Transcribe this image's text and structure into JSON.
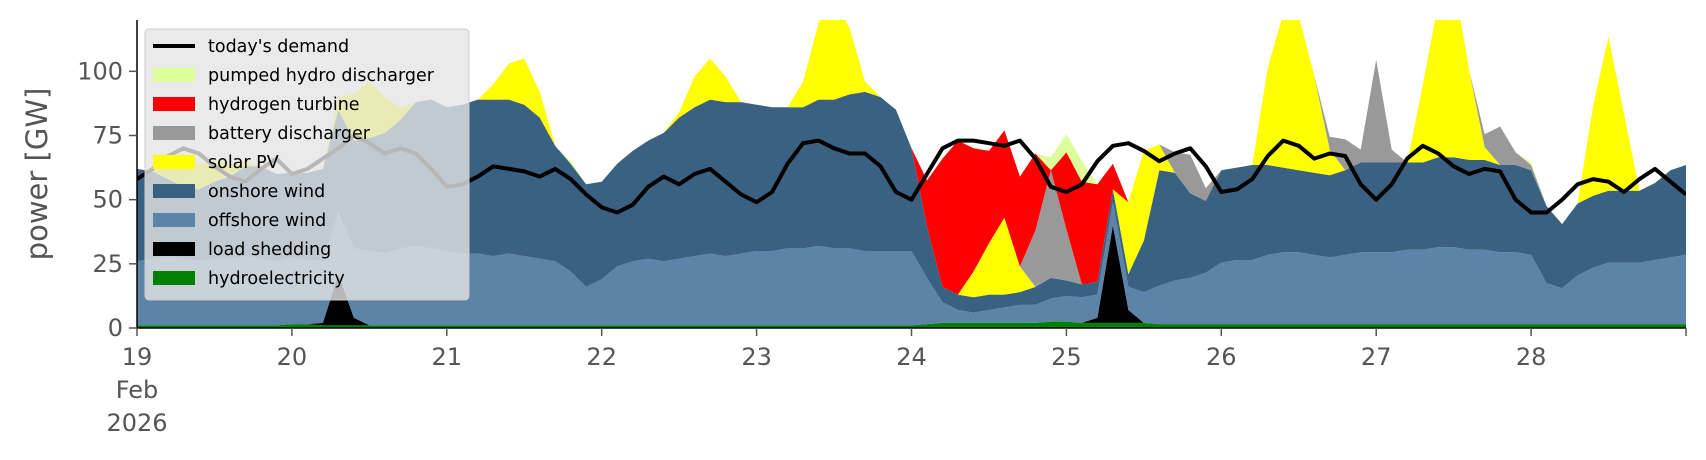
{
  "chart_data": {
    "type": "area",
    "ylabel": "power [GW]",
    "xlabel": "",
    "ylim": [
      0,
      120
    ],
    "xlim": [
      19,
      29
    ],
    "grid": false,
    "legend_position": "top-left",
    "x_ticks": [
      {
        "value": 19,
        "label": "19",
        "sub1": "Feb",
        "sub2": "2026"
      },
      {
        "value": 20,
        "label": "20"
      },
      {
        "value": 21,
        "label": "21"
      },
      {
        "value": 22,
        "label": "22"
      },
      {
        "value": 23,
        "label": "23"
      },
      {
        "value": 24,
        "label": "24"
      },
      {
        "value": 25,
        "label": "25"
      },
      {
        "value": 26,
        "label": "26"
      },
      {
        "value": 27,
        "label": "27"
      },
      {
        "value": 28,
        "label": "28"
      }
    ],
    "y_ticks": [
      0,
      25,
      50,
      75,
      100
    ],
    "x": [
      19.0,
      19.1,
      19.2,
      19.3,
      19.4,
      19.5,
      19.6,
      19.7,
      19.8,
      19.9,
      20.0,
      20.1,
      20.2,
      20.3,
      20.4,
      20.5,
      20.6,
      20.7,
      20.8,
      20.9,
      21.0,
      21.1,
      21.2,
      21.3,
      21.4,
      21.5,
      21.6,
      21.7,
      21.8,
      21.9,
      22.0,
      22.1,
      22.2,
      22.3,
      22.4,
      22.5,
      22.6,
      22.7,
      22.8,
      22.9,
      23.0,
      23.1,
      23.2,
      23.3,
      23.4,
      23.5,
      23.6,
      23.7,
      23.8,
      23.9,
      24.0,
      24.1,
      24.2,
      24.3,
      24.4,
      24.5,
      24.6,
      24.7,
      24.8,
      24.9,
      25.0,
      25.1,
      25.2,
      25.3,
      25.4,
      25.5,
      25.6,
      25.7,
      25.8,
      25.9,
      26.0,
      26.1,
      26.2,
      26.3,
      26.4,
      26.5,
      26.6,
      26.7,
      26.8,
      26.9,
      27.0,
      27.1,
      27.2,
      27.3,
      27.4,
      27.5,
      27.6,
      27.7,
      27.8,
      27.9,
      28.0,
      28.1,
      28.2,
      28.3,
      28.4,
      28.5,
      28.6,
      28.7,
      28.8,
      28.9,
      29.0
    ],
    "series": [
      {
        "name": "hydroelectricity",
        "color": "#008000",
        "values": [
          1,
          1,
          1,
          1,
          1,
          1,
          1,
          1,
          1,
          1,
          1.5,
          1.5,
          1,
          1,
          1,
          1,
          1,
          1,
          1,
          1,
          1,
          1,
          1,
          1,
          1,
          1,
          1,
          1,
          1,
          1,
          1,
          1,
          1,
          1,
          1,
          1,
          1,
          1,
          1,
          1,
          1,
          1,
          1,
          1,
          1,
          1,
          1,
          1,
          1,
          1,
          1,
          1.5,
          2,
          2,
          2,
          2,
          2,
          2,
          2,
          2.5,
          2.5,
          2,
          2,
          2,
          2,
          2,
          1.5,
          1.5,
          1.5,
          1.5,
          1.5,
          1.5,
          1.5,
          1.5,
          1.5,
          1.5,
          1.5,
          1.5,
          1.5,
          1.5,
          1.5,
          1.5,
          1.5,
          1.5,
          1.5,
          1.5,
          1.5,
          1.5,
          1.5,
          1.5,
          1.5,
          1.5,
          1.5,
          1.5,
          1.5,
          1.5,
          1.5,
          1.5,
          1.5,
          1.5,
          1.5
        ]
      },
      {
        "name": "load shedding",
        "color": "#000000",
        "values": [
          0,
          0,
          0,
          0,
          0,
          0,
          0,
          0,
          0,
          0,
          0,
          0,
          1,
          20,
          3,
          0,
          0,
          0,
          0,
          0,
          0,
          0,
          0,
          0,
          0,
          0,
          0,
          0,
          0,
          0,
          0,
          0,
          0,
          0,
          0,
          0,
          0,
          0,
          0,
          0,
          0,
          0,
          0,
          0,
          0,
          0,
          0,
          0,
          0,
          0,
          0,
          0,
          0,
          0,
          0,
          0,
          0,
          0,
          0,
          0,
          0,
          0,
          2,
          38,
          5,
          0,
          0,
          0,
          0,
          0,
          0,
          0,
          0,
          0,
          0,
          0,
          0,
          0,
          0,
          0,
          0,
          0,
          0,
          0,
          0,
          0,
          0,
          0,
          0,
          0,
          0,
          0,
          0,
          0,
          0,
          0,
          0,
          0,
          0,
          0,
          0
        ]
      },
      {
        "name": "offshore wind",
        "color": "#5b84a8",
        "values": [
          25,
          26,
          27,
          26,
          25,
          26,
          26,
          27,
          26,
          25,
          26,
          25,
          24,
          24,
          27,
          29,
          28,
          30,
          31,
          30,
          29,
          28,
          28,
          27,
          28,
          27,
          26,
          25,
          21,
          15,
          18,
          23,
          25,
          26,
          25,
          26,
          27,
          28,
          27,
          28,
          29,
          29,
          30,
          30,
          31,
          30,
          30,
          29,
          29,
          29,
          29,
          18,
          8,
          5,
          4,
          5,
          6,
          7,
          7,
          9,
          10,
          10,
          9,
          9,
          9,
          12,
          15,
          17,
          18,
          20,
          24,
          25,
          25,
          27,
          28,
          28,
          27,
          26,
          27,
          28,
          28,
          28,
          29,
          29,
          30,
          30,
          29,
          29,
          28,
          28,
          27,
          16,
          14,
          19,
          22,
          24,
          24,
          24,
          25,
          26,
          27
        ]
      },
      {
        "name": "onshore wind",
        "color": "#3b6182",
        "values": [
          36,
          34,
          30,
          28,
          28,
          30,
          32,
          35,
          36,
          34,
          33,
          34,
          36,
          40,
          42,
          44,
          47,
          50,
          56,
          58,
          56,
          58,
          60,
          61,
          60,
          59,
          55,
          45,
          42,
          40,
          38,
          40,
          43,
          46,
          50,
          55,
          58,
          60,
          60,
          59,
          57,
          56,
          55,
          55,
          57,
          58,
          60,
          62,
          60,
          55,
          40,
          20,
          6,
          6,
          6,
          6,
          5,
          5,
          7,
          8,
          6,
          5,
          5,
          5,
          5,
          20,
          45,
          42,
          33,
          28,
          36,
          36,
          37,
          35,
          33,
          32,
          32,
          32,
          33,
          35,
          35,
          35,
          34,
          34,
          35,
          35,
          35,
          35,
          34,
          34,
          33,
          30,
          25,
          28,
          28,
          28,
          28,
          28,
          30,
          34,
          35
        ]
      },
      {
        "name": "solar PV",
        "color": "#ffff00",
        "values": [
          0,
          0,
          5,
          8,
          10,
          8,
          5,
          2,
          0,
          0,
          0,
          0,
          0,
          5,
          18,
          22,
          14,
          5,
          0,
          0,
          0,
          0,
          0,
          6,
          14,
          18,
          10,
          0,
          0,
          0,
          0,
          0,
          0,
          0,
          0,
          2,
          12,
          16,
          10,
          0,
          0,
          0,
          0,
          10,
          30,
          38,
          26,
          4,
          0,
          0,
          0,
          0,
          0,
          0,
          10,
          20,
          30,
          10,
          0,
          0,
          0,
          0,
          0,
          0,
          28,
          35,
          10,
          0,
          0,
          0,
          0,
          0,
          0,
          38,
          60,
          60,
          38,
          10,
          0,
          0,
          0,
          0,
          0,
          30,
          60,
          70,
          35,
          5,
          0,
          0,
          0,
          0,
          0,
          0,
          35,
          60,
          30,
          0,
          0,
          0,
          0
        ]
      },
      {
        "name": "battery discharger",
        "color": "#999999",
        "values": [
          0,
          0,
          0,
          0,
          0,
          0,
          0,
          0,
          0,
          0,
          0,
          0,
          0,
          0,
          0,
          0,
          0,
          0,
          0,
          0,
          0,
          0,
          0,
          0,
          0,
          0,
          0,
          0,
          0,
          0,
          0,
          0,
          0,
          0,
          0,
          0,
          0,
          0,
          0,
          0,
          0,
          0,
          0,
          0,
          0,
          0,
          0,
          0,
          0,
          0,
          0,
          0,
          0,
          0,
          0,
          0,
          0,
          0,
          22,
          42,
          20,
          0,
          0,
          0,
          0,
          0,
          0,
          8,
          15,
          5,
          0,
          0,
          0,
          0,
          0,
          0,
          0,
          5,
          12,
          5,
          40,
          5,
          0,
          0,
          0,
          0,
          0,
          5,
          15,
          5,
          2,
          0,
          0,
          0,
          0,
          0,
          0,
          0,
          0,
          0,
          0
        ]
      },
      {
        "name": "hydrogen turbine",
        "color": "#ff0000",
        "values": [
          0,
          0,
          0,
          0,
          0,
          0,
          0,
          0,
          0,
          0,
          0,
          0,
          0,
          0,
          0,
          0,
          0,
          0,
          0,
          0,
          0,
          0,
          0,
          0,
          0,
          0,
          0,
          0,
          0,
          0,
          0,
          0,
          0,
          0,
          0,
          0,
          0,
          0,
          0,
          0,
          0,
          0,
          0,
          0,
          0,
          0,
          0,
          0,
          0,
          0,
          0,
          18,
          50,
          60,
          48,
          36,
          34,
          35,
          30,
          0,
          30,
          40,
          38,
          10,
          0,
          0,
          0,
          0,
          0,
          0,
          0,
          0,
          0,
          0,
          0,
          0,
          0,
          0,
          0,
          0,
          0,
          0,
          0,
          0,
          0,
          0,
          0,
          0,
          0,
          0,
          0,
          0,
          0,
          0,
          0,
          0,
          0,
          0,
          0,
          0,
          0
        ]
      },
      {
        "name": "pumped hydro discharger",
        "color": "#ddff99",
        "values": [
          0,
          0,
          0,
          0,
          0,
          0,
          0,
          0,
          0,
          0,
          0,
          0,
          0,
          0,
          0,
          0,
          0,
          0,
          0,
          0,
          0,
          0,
          0,
          0,
          0,
          0,
          0,
          0,
          1,
          0,
          0,
          0,
          0,
          0,
          0,
          0,
          0,
          0,
          0,
          0,
          0,
          0,
          0,
          0,
          0,
          0,
          0,
          0,
          0,
          0,
          0,
          0,
          0,
          0,
          0,
          0,
          0,
          0,
          0,
          5,
          7,
          8,
          0,
          0,
          0,
          0,
          0,
          0,
          0,
          0,
          0,
          0,
          0,
          0,
          0,
          0,
          0,
          0,
          0,
          0,
          0,
          0,
          0,
          0,
          0,
          0,
          0,
          0,
          0,
          0,
          1,
          0,
          0,
          0,
          0,
          0,
          0,
          0,
          0,
          0,
          0
        ]
      },
      {
        "name": "today's demand",
        "color": "#000000",
        "kind": "line",
        "values": [
          58,
          62,
          67,
          70,
          68,
          63,
          59,
          57,
          62,
          66,
          60,
          62,
          66,
          70,
          75,
          72,
          68,
          70,
          68,
          62,
          55,
          56,
          59,
          63,
          62,
          61,
          59,
          62,
          58,
          52,
          47,
          45,
          48,
          55,
          59,
          56,
          60,
          62,
          57,
          52,
          49,
          53,
          64,
          72,
          73,
          70,
          68,
          68,
          63,
          53,
          50,
          60,
          70,
          73,
          73,
          72,
          71,
          73,
          66,
          55,
          53,
          56,
          65,
          71,
          72,
          69,
          65,
          68,
          70,
          63,
          53,
          54,
          58,
          67,
          73,
          71,
          66,
          68,
          67,
          56,
          50,
          56,
          66,
          71,
          68,
          63,
          60,
          62,
          61,
          50,
          45,
          45,
          50,
          56,
          58,
          57,
          53,
          58,
          62,
          57,
          52
        ]
      }
    ]
  }
}
